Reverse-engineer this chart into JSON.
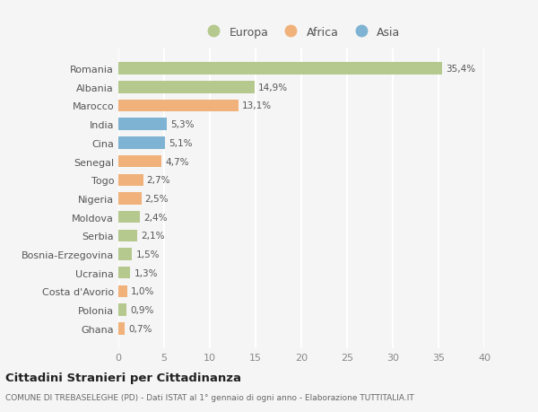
{
  "countries": [
    "Romania",
    "Albania",
    "Marocco",
    "India",
    "Cina",
    "Senegal",
    "Togo",
    "Nigeria",
    "Moldova",
    "Serbia",
    "Bosnia-Erzegovina",
    "Ucraina",
    "Costa d'Avorio",
    "Polonia",
    "Ghana"
  ],
  "values": [
    35.4,
    14.9,
    13.1,
    5.3,
    5.1,
    4.7,
    2.7,
    2.5,
    2.4,
    2.1,
    1.5,
    1.3,
    1.0,
    0.9,
    0.7
  ],
  "labels": [
    "35,4%",
    "14,9%",
    "13,1%",
    "5,3%",
    "5,1%",
    "4,7%",
    "2,7%",
    "2,5%",
    "2,4%",
    "2,1%",
    "1,5%",
    "1,3%",
    "1,0%",
    "0,9%",
    "0,7%"
  ],
  "continents": [
    "Europa",
    "Europa",
    "Africa",
    "Asia",
    "Asia",
    "Africa",
    "Africa",
    "Africa",
    "Europa",
    "Europa",
    "Europa",
    "Europa",
    "Africa",
    "Europa",
    "Africa"
  ],
  "colors": {
    "Europa": "#b5c98e",
    "Africa": "#f0b27a",
    "Asia": "#7fb3d3"
  },
  "legend_order": [
    "Europa",
    "Africa",
    "Asia"
  ],
  "xlim": [
    0,
    40
  ],
  "xticks": [
    0,
    5,
    10,
    15,
    20,
    25,
    30,
    35,
    40
  ],
  "title": "Cittadini Stranieri per Cittadinanza",
  "subtitle": "COMUNE DI TREBASELEGHE (PD) - Dati ISTAT al 1° gennaio di ogni anno - Elaborazione TUTTITALIA.IT",
  "background_color": "#f5f5f5",
  "grid_color": "#ffffff",
  "bar_height": 0.65
}
